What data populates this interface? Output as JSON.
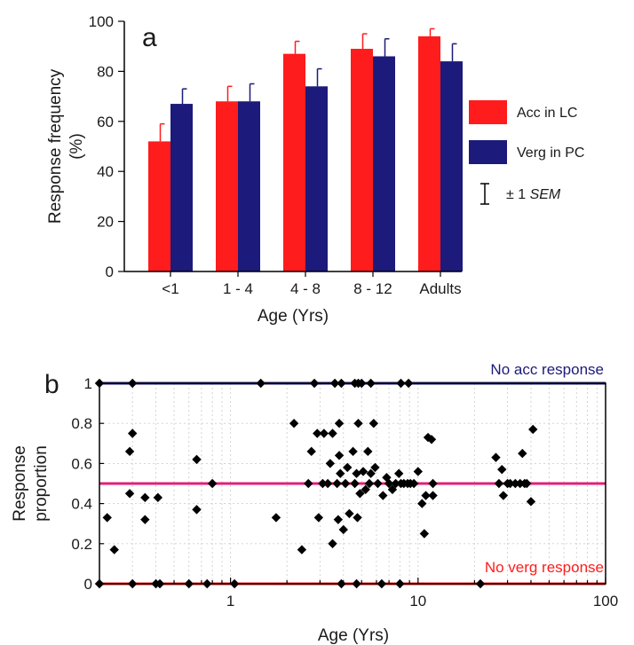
{
  "colors": {
    "red": "#ff1c1c",
    "navy": "#1c1a7a",
    "pink": "#e0207a",
    "text": "#1a1a1a"
  },
  "chart_data": [
    {
      "type": "bar",
      "panel_label": "a",
      "categories": [
        "<1",
        "1 - 4",
        "4 - 8",
        "8 - 12",
        "Adults"
      ],
      "xlabel": "Age (Yrs)",
      "ylabel_line1": "Response frequency",
      "ylabel_line2": "(%)",
      "ylim": [
        0,
        100
      ],
      "yticks": [
        0,
        20,
        40,
        60,
        80,
        100
      ],
      "series": [
        {
          "name": "Acc in LC",
          "color": "#ff1c1c",
          "values": [
            52,
            68,
            87,
            89,
            94
          ],
          "err": [
            7,
            6,
            5,
            6,
            3
          ]
        },
        {
          "name": "Verg in PC",
          "color": "#1c1a7a",
          "values": [
            67,
            68,
            74,
            86,
            84
          ],
          "err": [
            6,
            7,
            7,
            7,
            7
          ]
        }
      ],
      "legend_position": "right",
      "errorbar_legend": {
        "prefix": "± 1 ",
        "italic": "SEM"
      }
    },
    {
      "type": "scatter",
      "panel_label": "b",
      "xlabel": "Age (Yrs)",
      "ylabel_line1": "Response",
      "ylabel_line2": "proportion",
      "xscale": "log",
      "xlim": [
        0.2,
        100
      ],
      "ylim": [
        0,
        1
      ],
      "xticks": [
        1,
        10,
        100
      ],
      "xtick_labels": [
        "1",
        "10",
        "100"
      ],
      "yticks": [
        0,
        0.2,
        0.4,
        0.6,
        0.8,
        1
      ],
      "ytick_labels": [
        "0",
        "0.2",
        "0.4",
        "0.6",
        "0.8",
        "1"
      ],
      "grid": true,
      "reference_lines": [
        {
          "y": 1,
          "color": "#1c1a7a",
          "label": "No acc response"
        },
        {
          "y": 0.5,
          "color": "#e0207a",
          "label": ""
        },
        {
          "y": 0,
          "color": "#ff1c1c",
          "label": "No verg response"
        }
      ],
      "points": [
        [
          0.22,
          0.33
        ],
        [
          0.24,
          0.17
        ],
        [
          0.29,
          0.66
        ],
        [
          0.3,
          0.75
        ],
        [
          0.29,
          0.45
        ],
        [
          0.35,
          0.43
        ],
        [
          0.35,
          0.32
        ],
        [
          0.41,
          0.43
        ],
        [
          0.66,
          0.62
        ],
        [
          0.66,
          0.37
        ],
        [
          0.8,
          0.5
        ],
        [
          1.75,
          0.33
        ],
        [
          2.18,
          0.8
        ],
        [
          2.4,
          0.17
        ],
        [
          2.6,
          0.5
        ],
        [
          2.7,
          0.66
        ],
        [
          2.9,
          0.75
        ],
        [
          2.95,
          0.33
        ],
        [
          3.1,
          0.5
        ],
        [
          3.15,
          0.75
        ],
        [
          3.3,
          0.5
        ],
        [
          3.4,
          0.6
        ],
        [
          3.5,
          0.75
        ],
        [
          3.5,
          0.2
        ],
        [
          3.7,
          0.5
        ],
        [
          3.75,
          0.32
        ],
        [
          3.8,
          0.64
        ],
        [
          3.8,
          0.8
        ],
        [
          3.85,
          0.55
        ],
        [
          4.0,
          0.27
        ],
        [
          4.1,
          0.5
        ],
        [
          4.2,
          0.58
        ],
        [
          4.3,
          0.35
        ],
        [
          4.5,
          0.66
        ],
        [
          4.6,
          0.5
        ],
        [
          4.7,
          0.55
        ],
        [
          4.75,
          0.33
        ],
        [
          4.8,
          0.8
        ],
        [
          4.9,
          0.45
        ],
        [
          5.1,
          0.56
        ],
        [
          5.25,
          0.47
        ],
        [
          5.4,
          0.66
        ],
        [
          5.5,
          0.5
        ],
        [
          5.6,
          0.55
        ],
        [
          5.8,
          0.8
        ],
        [
          5.9,
          0.58
        ],
        [
          6.1,
          0.5
        ],
        [
          6.5,
          0.44
        ],
        [
          6.8,
          0.53
        ],
        [
          7.0,
          0.5
        ],
        [
          7.3,
          0.47
        ],
        [
          7.6,
          0.5
        ],
        [
          7.9,
          0.55
        ],
        [
          8.1,
          0.5
        ],
        [
          8.4,
          0.5
        ],
        [
          8.8,
          0.5
        ],
        [
          9.1,
          0.5
        ],
        [
          9.5,
          0.5
        ],
        [
          10.0,
          0.56
        ],
        [
          10.5,
          0.4
        ],
        [
          10.8,
          0.25
        ],
        [
          11.0,
          0.44
        ],
        [
          11.3,
          0.73
        ],
        [
          11.8,
          0.72
        ],
        [
          12.0,
          0.44
        ],
        [
          12.0,
          0.5
        ],
        [
          26.0,
          0.63
        ],
        [
          27.0,
          0.5
        ],
        [
          28.0,
          0.57
        ],
        [
          28.5,
          0.44
        ],
        [
          30.0,
          0.5
        ],
        [
          31.0,
          0.5
        ],
        [
          33.0,
          0.5
        ],
        [
          35.0,
          0.5
        ],
        [
          36.0,
          0.65
        ],
        [
          37.0,
          0.5
        ],
        [
          38.0,
          0.5
        ],
        [
          40.0,
          0.41
        ],
        [
          41.0,
          0.77
        ],
        [
          0.2,
          1
        ],
        [
          0.3,
          1
        ],
        [
          1.45,
          1
        ],
        [
          2.8,
          1
        ],
        [
          3.6,
          1
        ],
        [
          3.9,
          1
        ],
        [
          4.6,
          1
        ],
        [
          4.8,
          1
        ],
        [
          5.0,
          1
        ],
        [
          5.6,
          1
        ],
        [
          8.1,
          1
        ],
        [
          8.9,
          1
        ],
        [
          0.2,
          0
        ],
        [
          0.3,
          0
        ],
        [
          0.4,
          0
        ],
        [
          0.42,
          0
        ],
        [
          0.6,
          0
        ],
        [
          0.75,
          0
        ],
        [
          1.05,
          0
        ],
        [
          3.9,
          0
        ],
        [
          4.7,
          0
        ],
        [
          6.4,
          0
        ],
        [
          8.0,
          0
        ],
        [
          21.5,
          0
        ]
      ]
    }
  ]
}
